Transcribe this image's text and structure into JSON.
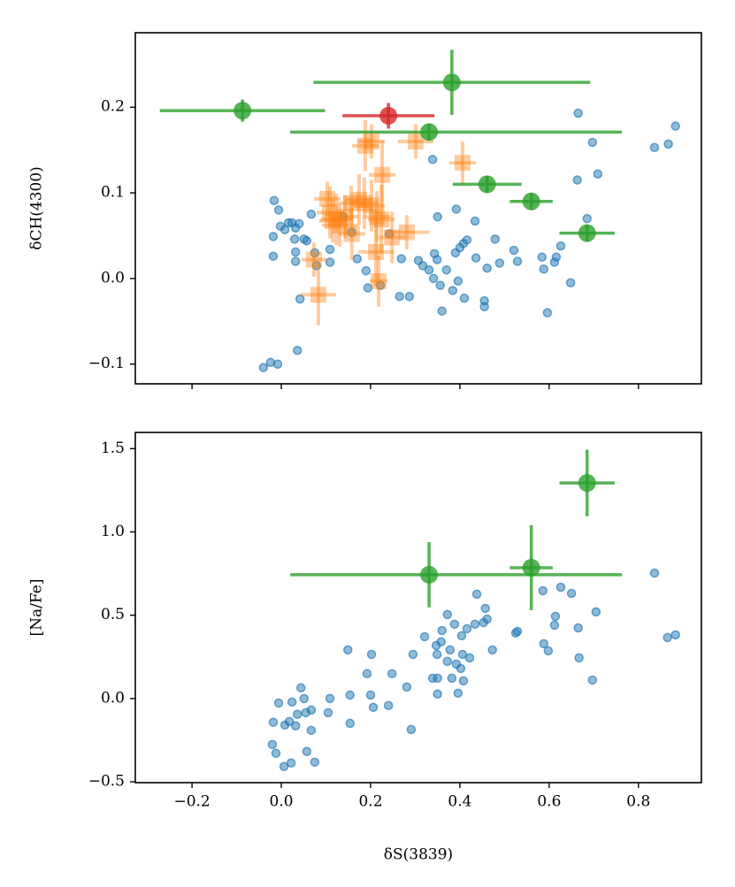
{
  "chart_data": [
    {
      "type": "scatter",
      "ylabel": "δCH(4300)",
      "xlim": [
        -0.327,
        0.941
      ],
      "xticks": [
        -0.2,
        0,
        0.2,
        0.4,
        0.6,
        0.8
      ],
      "xticklabels": false,
      "ylim": [
        -0.123,
        0.287
      ],
      "yticks": [
        {
          "value": -0.1,
          "label": "−0.1"
        },
        {
          "value": 0,
          "label": "0.0"
        },
        0.1,
        0.2
      ],
      "series": [
        {
          "color": "#1f77b4",
          "marker": "small-circle",
          "alpha": 0.5,
          "x": [
            -0.04,
            -0.024,
            -0.008,
            0.036,
            0.042,
            -0.016,
            -0.006,
            -0.018,
            -0.018,
            -0.002,
            0.008,
            0.016,
            0.024,
            0.032,
            0.04,
            0.03,
            0.032,
            0.032,
            0.051,
            0.057,
            0.067,
            0.075,
            0.079,
            0.109,
            0.109,
            0.139,
            0.158,
            0.17,
            0.194,
            0.19,
            0.222,
            0.242,
            0.265,
            0.287,
            0.307,
            0.317,
            0.331,
            0.343,
            0.349,
            0.339,
            0.35,
            0.341,
            0.36,
            0.37,
            0.356,
            0.384,
            0.392,
            0.396,
            0.39,
            0.4,
            0.408,
            0.416,
            0.41,
            0.434,
            0.436,
            0.455,
            0.455,
            0.461,
            0.479,
            0.489,
            0.521,
            0.529,
            0.584,
            0.588,
            0.596,
            0.612,
            0.616,
            0.626,
            0.648,
            0.663,
            0.665,
            0.685,
            0.697,
            0.709,
            0.836,
            0.867,
            0.883,
            0.269
          ],
          "values": [
            -0.104,
            -0.098,
            -0.1,
            -0.084,
            -0.024,
            0.091,
            0.08,
            0.049,
            0.026,
            0.061,
            0.057,
            0.065,
            0.065,
            0.059,
            0.064,
            0.046,
            0.031,
            0.02,
            0.046,
            0.044,
            0.075,
            0.03,
            0.015,
            0.034,
            0.019,
            0.072,
            0.054,
            0.023,
            -0.011,
            0.009,
            -0.008,
            0.052,
            -0.021,
            -0.021,
            0.021,
            0.015,
            0.01,
            0.029,
            0.022,
            0.139,
            0.072,
            0,
            -0.038,
            0.01,
            -0.008,
            -0.014,
            0.081,
            -0.003,
            0.03,
            0.036,
            0.041,
            0.045,
            -0.023,
            0.067,
            0.024,
            -0.026,
            -0.033,
            0.012,
            0.046,
            0.018,
            0.033,
            0.02,
            0.025,
            0.011,
            -0.04,
            0.019,
            0.025,
            0.038,
            -0.005,
            0.115,
            0.193,
            0.07,
            0.159,
            0.122,
            0.153,
            0.157,
            0.178,
            0.023
          ]
        },
        {
          "color": "#ff7f0e",
          "marker": "square",
          "alpha": 0.4,
          "x": [
            0.083,
            0.073,
            0.103,
            0.109,
            0.123,
            0.131,
            0.115,
            0.143,
            0.156,
            0.174,
            0.186,
            0.202,
            0.214,
            0.224,
            0.188,
            0.202,
            0.226,
            0.158,
            0.212,
            0.218,
            0.248,
            0.281,
            0.301,
            0.406
          ],
          "values": [
            -0.019,
            0.022,
            0.093,
            0.077,
            0.069,
            0.062,
            0.067,
            0.072,
            0.088,
            0.092,
            0.088,
            0.085,
            0.072,
            0.069,
            0.155,
            0.16,
            0.121,
            0.052,
            0.031,
            -0.003,
            0.048,
            0.054,
            0.16,
            0.135
          ],
          "xerr": [
            0.04,
            0.028,
            0.03,
            0.03,
            0.035,
            0.04,
            0.03,
            0.03,
            0.03,
            0.03,
            0.03,
            0.03,
            0.03,
            0.03,
            0.03,
            0.03,
            0.03,
            0.03,
            0.04,
            0.02,
            0.03,
            0.05,
            0.04,
            0.03
          ],
          "yerr": [
            0.036,
            0.02,
            0.02,
            0.03,
            0.03,
            0.025,
            0.025,
            0.025,
            0.02,
            0.03,
            0.03,
            0.03,
            0.03,
            0.04,
            0.03,
            0.02,
            0.04,
            0.03,
            0.04,
            0.03,
            0.03,
            0.02,
            0.02,
            0.025
          ]
        },
        {
          "color": "#2ca02c",
          "marker": "circle",
          "alpha": 0.8,
          "x": [
            -0.087,
            0.382,
            0.331,
            0.461,
            0.56,
            0.685
          ],
          "values": [
            0.196,
            0.229,
            0.171,
            0.11,
            0.09,
            0.053
          ],
          "xerr": [
            0.185,
            0.31,
            [
              0.311,
              0.432
            ],
            0.077,
            0.048,
            0.062
          ],
          "yerr": [
            0.013,
            0.038,
            0.01,
            0.01,
            0.01,
            0.01
          ]
        },
        {
          "color": "#d62728",
          "marker": "circle",
          "alpha": 0.8,
          "x": [
            0.24
          ],
          "values": [
            0.19
          ],
          "xerr": [
            0.103
          ],
          "yerr": [
            0.015
          ]
        }
      ]
    },
    {
      "type": "scatter",
      "ylabel": "[Na/Fe]",
      "xlabel": "δS(3839)",
      "xlim": [
        -0.327,
        0.941
      ],
      "xticks": [
        {
          "value": -0.2,
          "label": "−0.2"
        },
        {
          "value": 0,
          "label": "0.0"
        },
        0.2,
        0.4,
        0.6,
        0.8
      ],
      "ylim": [
        -0.505,
        1.597
      ],
      "yticks": [
        {
          "value": -0.5,
          "label": "−0.5"
        },
        {
          "value": 0,
          "label": "0.0"
        },
        0.5,
        {
          "value": 1,
          "label": "1.0"
        },
        1.5
      ],
      "series": [
        {
          "color": "#1f77b4",
          "marker": "small-circle",
          "alpha": 0.5,
          "x": [
            -0.02,
            -0.012,
            0.006,
            0.022,
            -0.018,
            -0.006,
            0.008,
            0.018,
            0.024,
            0.032,
            0.036,
            0.044,
            0.051,
            0.055,
            0.067,
            0.067,
            0.075,
            0.057,
            0.105,
            0.109,
            0.149,
            0.154,
            0.154,
            0.192,
            0.202,
            0.2,
            0.206,
            0.248,
            0.24,
            0.281,
            0.291,
            0.295,
            0.321,
            0.339,
            0.349,
            0.35,
            0.35,
            0.347,
            0.36,
            0.358,
            0.372,
            0.372,
            0.378,
            0.382,
            0.388,
            0.392,
            0.396,
            0.402,
            0.404,
            0.406,
            0.408,
            0.416,
            0.422,
            0.434,
            0.438,
            0.453,
            0.457,
            0.461,
            0.473,
            0.525,
            0.529,
            0.586,
            0.588,
            0.598,
            0.612,
            0.614,
            0.626,
            0.65,
            0.665,
            0.667,
            0.697,
            0.705,
            0.836,
            0.865,
            0.883
          ],
          "values": [
            -0.276,
            -0.329,
            -0.408,
            -0.387,
            -0.143,
            -0.027,
            -0.159,
            -0.138,
            -0.021,
            -0.164,
            -0.095,
            0.064,
            0,
            -0.085,
            -0.069,
            -0.191,
            -0.382,
            -0.318,
            -0.085,
            0,
            0.292,
            -0.149,
            0.021,
            0.149,
            0.265,
            0.021,
            -0.053,
            0.149,
            -0.042,
            0.069,
            -0.186,
            0.265,
            0.371,
            0.122,
            0.265,
            0.122,
            0.027,
            0.318,
            0.408,
            0.34,
            0.504,
            0.223,
            0.292,
            0.122,
            0.446,
            0.207,
            0.032,
            0.18,
            0.377,
            0.265,
            0.106,
            0.419,
            0.244,
            0.446,
            0.626,
            0.456,
            0.541,
            0.477,
            0.292,
            0.393,
            0.403,
            0.647,
            0.329,
            0.286,
            0.44,
            0.493,
            0.668,
            0.631,
            0.424,
            0.244,
            0.111,
            0.52,
            0.753,
            0.366,
            0.382
          ]
        },
        {
          "color": "#2ca02c",
          "marker": "circle",
          "alpha": 0.8,
          "x": [
            0.331,
            0.56,
            0.685
          ],
          "values": [
            0.743,
            0.785,
            1.294
          ],
          "xerr": [
            [
              0.311,
              0.432
            ],
            0.048,
            0.062
          ],
          "yerr": [
            0.196,
            0.255,
            0.2
          ]
        }
      ]
    }
  ]
}
